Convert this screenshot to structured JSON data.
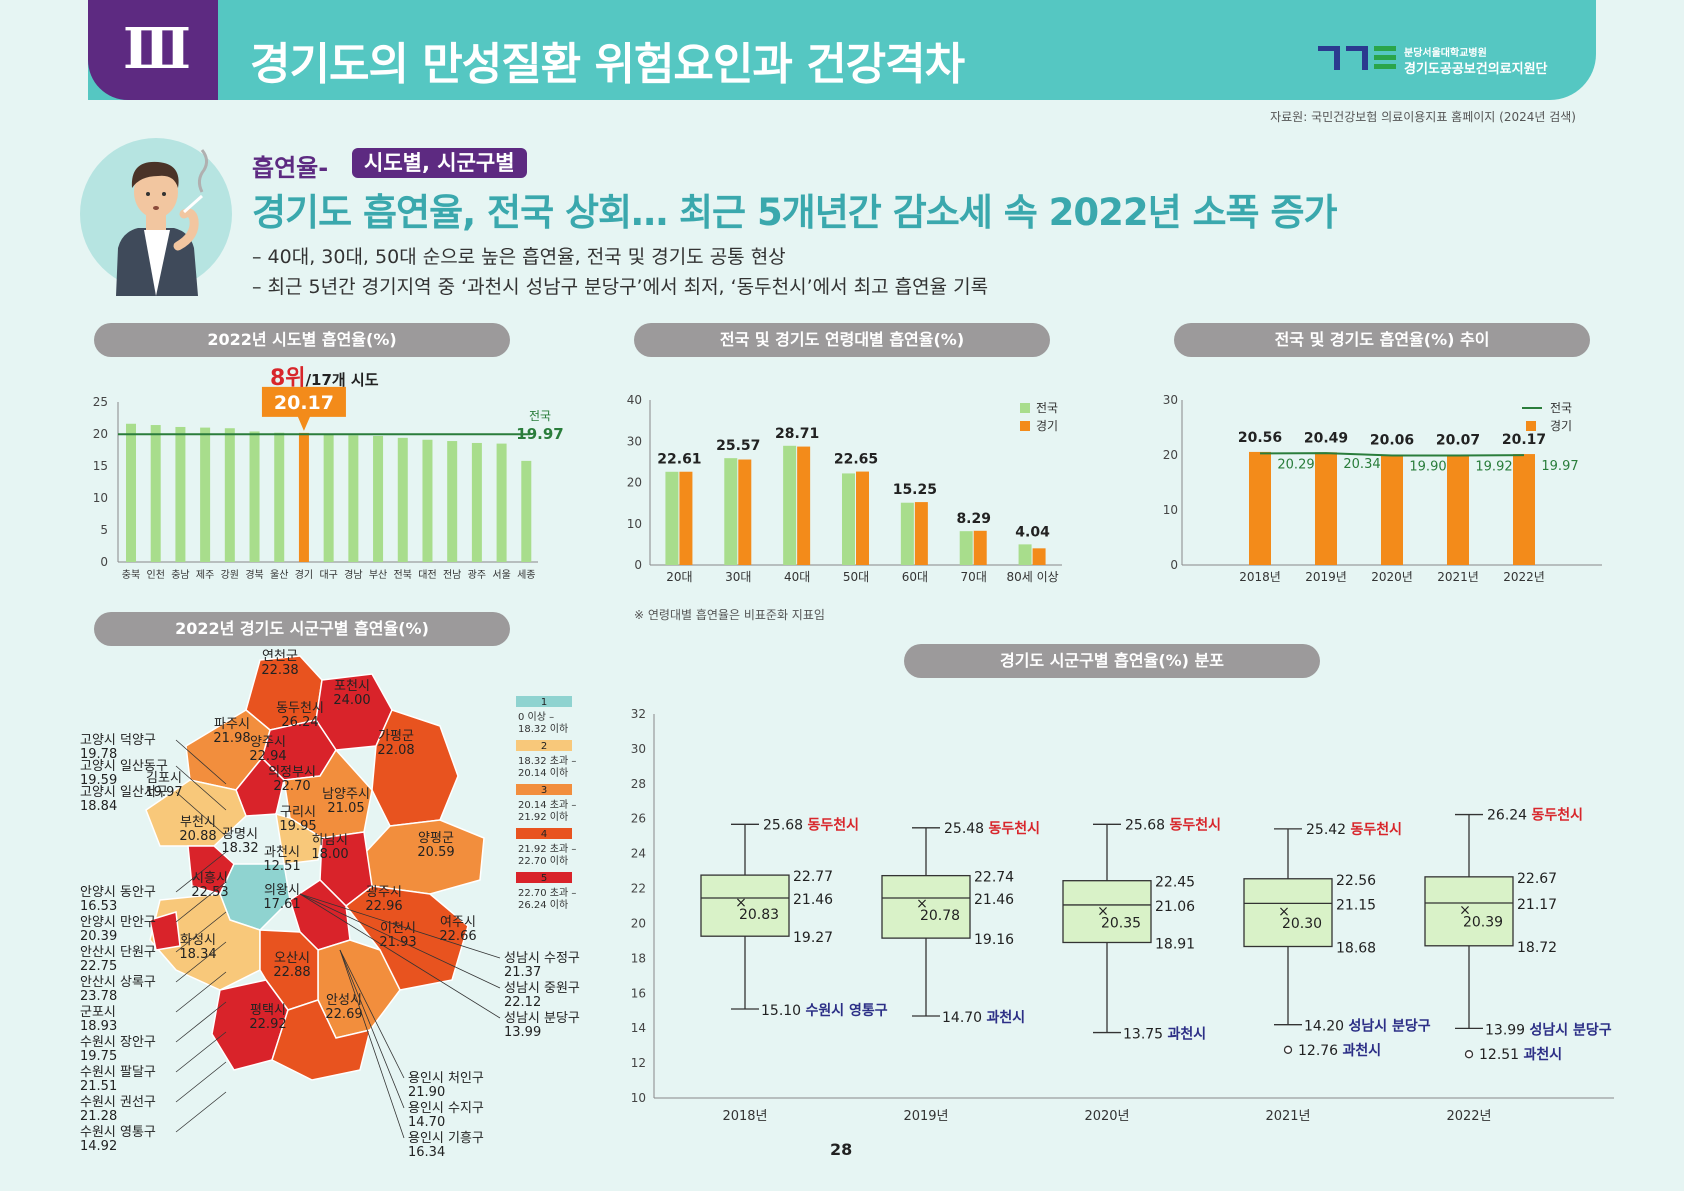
{
  "header": {
    "chapter": "Ⅲ",
    "title": "경기도의 만성질환 위험요인과 건강격차",
    "logo_line1": "분당서울대학교병원",
    "logo_line2": "경기도공공보건의료지원단"
  },
  "source": "자료원: 국민건강보험 의료이용지표 홈페이지 (2024년 검색)",
  "topic": {
    "label": "흡연율-",
    "badge": "시도별, 시군구별",
    "headline": "경기도 흡연율, 전국 상회… 최근 5개년간 감소세 속 2022년 소폭 증가",
    "bullets": [
      "– 40대, 30대, 50대 순으로 높은 흡연율, 전국 및 경기도 공통 현상",
      "– 최근 5년간 경기지역 중 ‘과천시 성남구 분당구’에서 최저, ‘동두천시’에서 최고 흡연율 기록"
    ]
  },
  "colors": {
    "green": "#a8dd8c",
    "orange": "#f38b1a",
    "national_line": "#2a7d3b",
    "teal": "#3dabb0",
    "red": "#d8262b",
    "navy": "#2c2f86",
    "box_fill": "#d9f2c8"
  },
  "pills": {
    "p1": "2022년 시도별 흡연율(%)",
    "p2": "전국 및 경기도 연령대별 흡연율(%)",
    "p3": "전국 및 경기도 흡연율(%) 추이",
    "p4": "2022년 경기도 시군구별 흡연율(%)",
    "p5": "경기도 시군구별 흡연율(%) 분포"
  },
  "rank": {
    "main": "8위",
    "sub": "/17개 시도"
  },
  "age_note": "※ 연령대별 흡연율은 비표준화 지표임",
  "page_number": "28",
  "chart_data": [
    {
      "id": "sido",
      "type": "bar",
      "categories": [
        "충북",
        "인천",
        "충남",
        "제주",
        "강원",
        "경북",
        "울산",
        "경기",
        "대구",
        "경남",
        "부산",
        "전북",
        "대전",
        "전남",
        "광주",
        "서울",
        "세종"
      ],
      "values": [
        21.6,
        21.4,
        21.1,
        21.0,
        20.9,
        20.4,
        20.2,
        20.17,
        19.9,
        19.8,
        19.7,
        19.4,
        19.1,
        18.9,
        18.6,
        18.5,
        15.8
      ],
      "highlight": "경기",
      "highlight_label": "20.17",
      "reference_line": {
        "label": "전국",
        "value": 19.97,
        "value_label": "19.97"
      },
      "yticks": [
        "0",
        "5",
        "10",
        "15",
        "20",
        "25"
      ],
      "ylim": [
        0,
        25
      ]
    },
    {
      "id": "age",
      "type": "bar",
      "categories": [
        "20대",
        "30대",
        "40대",
        "50대",
        "60대",
        "70대",
        "80세 이상"
      ],
      "series": [
        {
          "name": "전국",
          "values": [
            22.6,
            25.9,
            28.9,
            22.2,
            15.1,
            8.2,
            5.0
          ]
        },
        {
          "name": "경기",
          "values": [
            22.61,
            25.57,
            28.71,
            22.65,
            15.25,
            8.29,
            4.04
          ]
        }
      ],
      "data_labels": [
        "22.61",
        "25.57",
        "28.71",
        "22.65",
        "15.25",
        "8.29",
        "4.04"
      ],
      "yticks": [
        "0",
        "10",
        "20",
        "30",
        "40"
      ],
      "ylim": [
        0,
        40
      ]
    },
    {
      "id": "trend",
      "type": "bar",
      "categories": [
        "2018년",
        "2019년",
        "2020년",
        "2021년",
        "2022년"
      ],
      "series": [
        {
          "name": "전국",
          "values": [
            20.29,
            20.34,
            19.9,
            19.92,
            19.97
          ],
          "labels": [
            "20.29",
            "20.34",
            "19.90",
            "19.92",
            "19.97"
          ]
        },
        {
          "name": "경기",
          "values": [
            20.56,
            20.49,
            20.06,
            20.07,
            20.17
          ],
          "labels": [
            "20.56",
            "20.49",
            "20.06",
            "20.07",
            "20.17"
          ]
        }
      ],
      "yticks": [
        "0",
        "10",
        "20",
        "30"
      ],
      "ylim": [
        0,
        30
      ]
    },
    {
      "id": "box",
      "type": "box",
      "categories": [
        "2018년",
        "2019년",
        "2020년",
        "2021년",
        "2022년"
      ],
      "yticks": [
        "10",
        "12",
        "14",
        "16",
        "18",
        "20",
        "22",
        "24",
        "26",
        "28",
        "30",
        "32"
      ],
      "ylim": [
        10,
        32
      ],
      "boxes": [
        {
          "max": 25.68,
          "max_label": "25.68",
          "max_name": "동두천시",
          "q3": 22.77,
          "q3_label": "22.77",
          "median": 21.46,
          "median_label": "21.46",
          "q1": 19.27,
          "q1_label": "19.27",
          "mean": 20.83,
          "mean_label": "20.83",
          "min": 15.1,
          "min_label": "15.10",
          "min_name": "수원시 영통구"
        },
        {
          "max": 25.48,
          "max_label": "25.48",
          "max_name": "동두천시",
          "q3": 22.74,
          "q3_label": "22.74",
          "median": 21.46,
          "median_label": "21.46",
          "q1": 19.16,
          "q1_label": "19.16",
          "mean": 20.78,
          "mean_label": "20.78",
          "min": 14.7,
          "min_label": "14.70",
          "min_name": "과천시"
        },
        {
          "max": 25.68,
          "max_label": "25.68",
          "max_name": "동두천시",
          "q3": 22.45,
          "q3_label": "22.45",
          "median": 21.06,
          "median_label": "21.06",
          "q1": 18.91,
          "q1_label": "18.91",
          "mean": 20.35,
          "mean_label": "20.35",
          "min": 13.75,
          "min_label": "13.75",
          "min_name": "과천시"
        },
        {
          "max": 25.42,
          "max_label": "25.42",
          "max_name": "동두천시",
          "q3": 22.56,
          "q3_label": "22.56",
          "median": 21.15,
          "median_label": "21.15",
          "q1": 18.68,
          "q1_label": "18.68",
          "mean": 20.3,
          "mean_label": "20.30",
          "min": 14.2,
          "min_label": "14.20",
          "min_name": "성남시 분당구",
          "outlier": 12.76,
          "outlier_label": "12.76",
          "outlier_name": "과천시"
        },
        {
          "max": 26.24,
          "max_label": "26.24",
          "max_name": "동두천시",
          "q3": 22.67,
          "q3_label": "22.67",
          "median": 21.17,
          "median_label": "21.17",
          "q1": 18.72,
          "q1_label": "18.72",
          "mean": 20.39,
          "mean_label": "20.39",
          "min": 13.99,
          "min_label": "13.99",
          "min_name": "성남시 분당구",
          "outlier": 12.51,
          "outlier_label": "12.51",
          "outlier_name": "과천시"
        }
      ]
    },
    {
      "id": "map",
      "type": "choropleth",
      "legend": [
        {
          "class": "1",
          "range": [
            "0 이상 –",
            "18.32 이하"
          ],
          "color": "#8fd3d0"
        },
        {
          "class": "2",
          "range": [
            "18.32 초과 –",
            "20.14 이하"
          ],
          "color": "#f8c87a"
        },
        {
          "class": "3",
          "range": [
            "20.14 초과 –",
            "21.92 이하"
          ],
          "color": "#f28e3d"
        },
        {
          "class": "4",
          "range": [
            "21.92 초과 –",
            "22.70 이하"
          ],
          "color": "#e8531f"
        },
        {
          "class": "5",
          "range": [
            "22.70 초과 –",
            "26.24 이하"
          ],
          "color": "#d9232a"
        }
      ],
      "inner_labels": [
        {
          "name": "연천군",
          "value": "22.38"
        },
        {
          "name": "포천시",
          "value": "24.00"
        },
        {
          "name": "동두천시",
          "value": "26.24"
        },
        {
          "name": "파주시",
          "value": "21.98"
        },
        {
          "name": "양주시",
          "value": "22.94"
        },
        {
          "name": "가평군",
          "value": "22.08"
        },
        {
          "name": "의정부시",
          "value": "22.70"
        },
        {
          "name": "김포시",
          "value": "19.97"
        },
        {
          "name": "남양주시",
          "value": "21.05"
        },
        {
          "name": "구리시",
          "value": "19.95"
        },
        {
          "name": "부천시",
          "value": "20.88"
        },
        {
          "name": "광명시",
          "value": "18.32"
        },
        {
          "name": "과천시",
          "value": "12.51"
        },
        {
          "name": "하남시",
          "value": "18.00"
        },
        {
          "name": "양평군",
          "value": "20.59"
        },
        {
          "name": "시흥시",
          "value": "22.53"
        },
        {
          "name": "의왕시",
          "value": "17.61"
        },
        {
          "name": "광주시",
          "value": "22.96"
        },
        {
          "name": "화성시",
          "value": "18.34"
        },
        {
          "name": "이천시",
          "value": "21.93"
        },
        {
          "name": "여주시",
          "value": "22.66"
        },
        {
          "name": "오산시",
          "value": "22.88"
        },
        {
          "name": "평택시",
          "value": "22.92"
        },
        {
          "name": "안성시",
          "value": "22.69"
        }
      ],
      "left_callouts": [
        {
          "name": "고양시 덕양구",
          "value": "19.78"
        },
        {
          "name": "고양시 일산동구",
          "value": "19.59"
        },
        {
          "name": "고양시 일산서구",
          "value": "18.84"
        },
        {
          "name": "안양시 동안구",
          "value": "16.53"
        },
        {
          "name": "안양시 만안구",
          "value": "20.39"
        },
        {
          "name": "안산시 단원구",
          "value": "22.75"
        },
        {
          "name": "안산시 상록구",
          "value": "23.78"
        },
        {
          "name": "군포시",
          "value": "18.93"
        },
        {
          "name": "수원시 장안구",
          "value": "19.75"
        },
        {
          "name": "수원시 팔달구",
          "value": "21.51"
        },
        {
          "name": "수원시 권선구",
          "value": "21.28"
        },
        {
          "name": "수원시 영통구",
          "value": "14.92"
        }
      ],
      "right_callouts": [
        {
          "name": "성남시 수정구",
          "value": "21.37"
        },
        {
          "name": "성남시 중원구",
          "value": "22.12"
        },
        {
          "name": "성남시 분당구",
          "value": "13.99"
        }
      ],
      "bottom_callouts": [
        {
          "name": "용인시 처인구",
          "value": "21.90"
        },
        {
          "name": "용인시 수지구",
          "value": "14.70"
        },
        {
          "name": "용인시 기흥구",
          "value": "16.34"
        }
      ]
    }
  ]
}
